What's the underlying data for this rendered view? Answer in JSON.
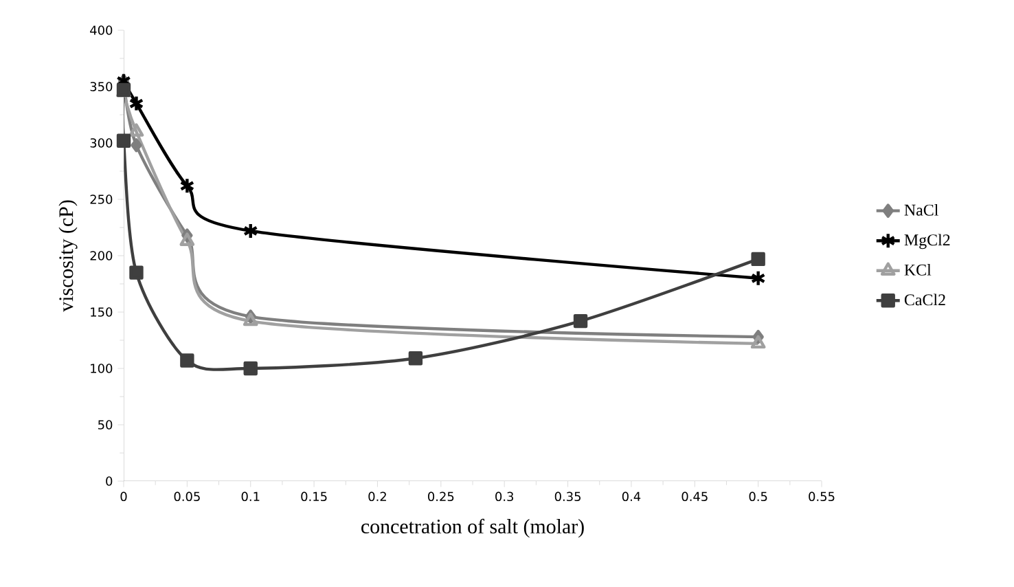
{
  "chart_data": {
    "type": "line",
    "xlabel": "concetration of salt (molar)",
    "ylabel": "viscosity (cP)",
    "xlim": [
      0,
      0.55
    ],
    "xticks": [
      0,
      0.05,
      0.1,
      0.15,
      0.2,
      0.25,
      0.3,
      0.35,
      0.4,
      0.45,
      0.5,
      0.55
    ],
    "ylim": [
      0,
      400
    ],
    "yticks": [
      0,
      50,
      100,
      150,
      200,
      250,
      300,
      350,
      400
    ],
    "grid": false,
    "legend": "right",
    "series": [
      {
        "name": "NaCl",
        "color": "#7f7f7f",
        "marker": "diamond",
        "x": [
          0,
          0.01,
          0.05,
          0.1,
          0.5
        ],
        "values": [
          355,
          298,
          218,
          146,
          128
        ]
      },
      {
        "name": "MgCl2",
        "color": "#000000",
        "marker": "cross",
        "x": [
          0,
          0.01,
          0.05,
          0.1,
          0.5
        ],
        "values": [
          355,
          335,
          262,
          222,
          180
        ]
      },
      {
        "name": "KCl",
        "color": "#a0a0a0",
        "marker": "triangle",
        "x": [
          0,
          0.01,
          0.05,
          0.1,
          0.5
        ],
        "values": [
          345,
          310,
          213,
          142,
          122
        ]
      },
      {
        "name": "CaCl2",
        "color": "#3f3f3f",
        "marker": "square",
        "x": [
          0,
          0,
          0.01,
          0.05,
          0.1,
          0.23,
          0.36,
          0.5
        ],
        "values": [
          347,
          302,
          185,
          107,
          100,
          109,
          142,
          197
        ]
      }
    ]
  }
}
